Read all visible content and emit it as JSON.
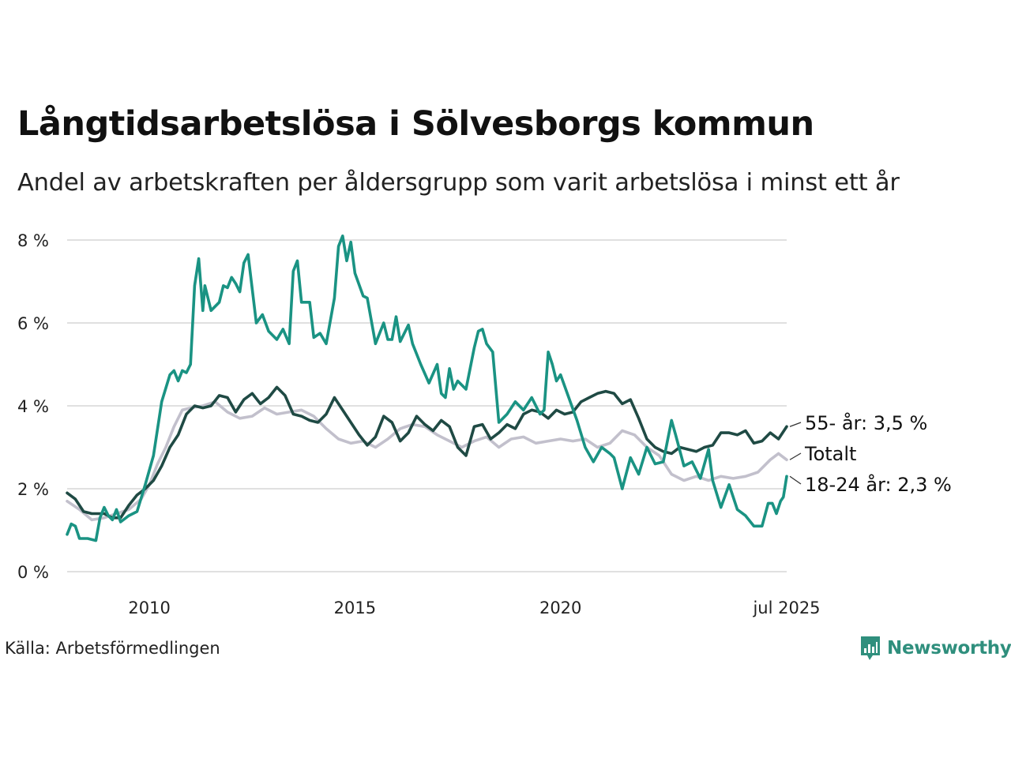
{
  "title": "Långtidsarbetslösa i Sölvesborgs kommun",
  "subtitle": "Andel av arbetskraften per åldersgrupp som varit arbetslösa i minst ett år",
  "source": "Källa: Arbetsförmedlingen",
  "brand": "Newsworthy",
  "colors": {
    "series_55": "#1f4a44",
    "series_total": "#c2c0cc",
    "series_18_24": "#1a9383",
    "grid": "#e0e0e0",
    "brand": "#2f8f7d"
  },
  "chart_data": {
    "type": "line",
    "x_unit": "year",
    "ylim": [
      0,
      8
    ],
    "xlim": [
      2008.0,
      2025.5
    ],
    "y_ticks": [
      0,
      2,
      4,
      6,
      8
    ],
    "y_tick_labels": [
      "0 %",
      "2 %",
      "4 %",
      "6 %",
      "8 %"
    ],
    "x_ticks": [
      2010,
      2015,
      2020,
      2025.5
    ],
    "x_tick_labels": [
      "2010",
      "2015",
      "2020",
      "jul 2025"
    ],
    "grid": "horizontal",
    "series": [
      {
        "key": "total",
        "name": "Totalt",
        "end_label": "Totalt",
        "color": "#c2c0cc",
        "points": [
          [
            2008.0,
            1.7
          ],
          [
            2008.3,
            1.5
          ],
          [
            2008.6,
            1.25
          ],
          [
            2008.9,
            1.3
          ],
          [
            2009.2,
            1.4
          ],
          [
            2009.5,
            1.5
          ],
          [
            2009.8,
            1.75
          ],
          [
            2010.0,
            2.1
          ],
          [
            2010.2,
            2.6
          ],
          [
            2010.4,
            3.0
          ],
          [
            2010.6,
            3.5
          ],
          [
            2010.8,
            3.9
          ],
          [
            2011.0,
            3.95
          ],
          [
            2011.3,
            4.0
          ],
          [
            2011.6,
            4.1
          ],
          [
            2011.9,
            3.85
          ],
          [
            2012.2,
            3.7
          ],
          [
            2012.5,
            3.75
          ],
          [
            2012.8,
            3.95
          ],
          [
            2013.1,
            3.8
          ],
          [
            2013.4,
            3.85
          ],
          [
            2013.7,
            3.9
          ],
          [
            2014.0,
            3.75
          ],
          [
            2014.3,
            3.45
          ],
          [
            2014.6,
            3.2
          ],
          [
            2014.9,
            3.1
          ],
          [
            2015.2,
            3.15
          ],
          [
            2015.5,
            3.0
          ],
          [
            2015.8,
            3.2
          ],
          [
            2016.1,
            3.45
          ],
          [
            2016.4,
            3.55
          ],
          [
            2016.7,
            3.5
          ],
          [
            2017.0,
            3.3
          ],
          [
            2017.3,
            3.15
          ],
          [
            2017.6,
            3.0
          ],
          [
            2017.9,
            3.15
          ],
          [
            2018.2,
            3.25
          ],
          [
            2018.5,
            3.0
          ],
          [
            2018.8,
            3.2
          ],
          [
            2019.1,
            3.25
          ],
          [
            2019.4,
            3.1
          ],
          [
            2019.7,
            3.15
          ],
          [
            2020.0,
            3.2
          ],
          [
            2020.3,
            3.15
          ],
          [
            2020.6,
            3.2
          ],
          [
            2020.9,
            3.0
          ],
          [
            2021.2,
            3.1
          ],
          [
            2021.5,
            3.4
          ],
          [
            2021.8,
            3.3
          ],
          [
            2022.1,
            3.0
          ],
          [
            2022.4,
            2.8
          ],
          [
            2022.7,
            2.35
          ],
          [
            2023.0,
            2.2
          ],
          [
            2023.3,
            2.3
          ],
          [
            2023.6,
            2.2
          ],
          [
            2023.9,
            2.3
          ],
          [
            2024.2,
            2.25
          ],
          [
            2024.5,
            2.3
          ],
          [
            2024.8,
            2.4
          ],
          [
            2025.1,
            2.7
          ],
          [
            2025.3,
            2.85
          ],
          [
            2025.5,
            2.7
          ]
        ]
      },
      {
        "key": "s55",
        "name": "55- år",
        "end_label": "55- år: 3,5 %",
        "color": "#1f4a44",
        "points": [
          [
            2008.0,
            1.9
          ],
          [
            2008.2,
            1.75
          ],
          [
            2008.4,
            1.45
          ],
          [
            2008.6,
            1.4
          ],
          [
            2008.9,
            1.4
          ],
          [
            2009.1,
            1.3
          ],
          [
            2009.3,
            1.3
          ],
          [
            2009.5,
            1.6
          ],
          [
            2009.7,
            1.85
          ],
          [
            2009.9,
            2.0
          ],
          [
            2010.1,
            2.2
          ],
          [
            2010.3,
            2.55
          ],
          [
            2010.5,
            3.0
          ],
          [
            2010.7,
            3.3
          ],
          [
            2010.9,
            3.8
          ],
          [
            2011.1,
            4.0
          ],
          [
            2011.3,
            3.95
          ],
          [
            2011.5,
            4.0
          ],
          [
            2011.7,
            4.25
          ],
          [
            2011.9,
            4.2
          ],
          [
            2012.1,
            3.85
          ],
          [
            2012.3,
            4.15
          ],
          [
            2012.5,
            4.3
          ],
          [
            2012.7,
            4.05
          ],
          [
            2012.9,
            4.2
          ],
          [
            2013.1,
            4.45
          ],
          [
            2013.3,
            4.25
          ],
          [
            2013.5,
            3.8
          ],
          [
            2013.7,
            3.75
          ],
          [
            2013.9,
            3.65
          ],
          [
            2014.1,
            3.6
          ],
          [
            2014.3,
            3.8
          ],
          [
            2014.5,
            4.2
          ],
          [
            2014.7,
            3.9
          ],
          [
            2014.9,
            3.6
          ],
          [
            2015.1,
            3.3
          ],
          [
            2015.3,
            3.05
          ],
          [
            2015.5,
            3.25
          ],
          [
            2015.7,
            3.75
          ],
          [
            2015.9,
            3.6
          ],
          [
            2016.1,
            3.15
          ],
          [
            2016.3,
            3.35
          ],
          [
            2016.5,
            3.75
          ],
          [
            2016.7,
            3.55
          ],
          [
            2016.9,
            3.4
          ],
          [
            2017.1,
            3.65
          ],
          [
            2017.3,
            3.5
          ],
          [
            2017.5,
            3.0
          ],
          [
            2017.7,
            2.8
          ],
          [
            2017.9,
            3.5
          ],
          [
            2018.1,
            3.55
          ],
          [
            2018.3,
            3.2
          ],
          [
            2018.5,
            3.35
          ],
          [
            2018.7,
            3.55
          ],
          [
            2018.9,
            3.45
          ],
          [
            2019.1,
            3.8
          ],
          [
            2019.3,
            3.9
          ],
          [
            2019.5,
            3.85
          ],
          [
            2019.7,
            3.7
          ],
          [
            2019.9,
            3.9
          ],
          [
            2020.1,
            3.8
          ],
          [
            2020.3,
            3.85
          ],
          [
            2020.5,
            4.1
          ],
          [
            2020.7,
            4.2
          ],
          [
            2020.9,
            4.3
          ],
          [
            2021.1,
            4.35
          ],
          [
            2021.3,
            4.3
          ],
          [
            2021.5,
            4.05
          ],
          [
            2021.7,
            4.15
          ],
          [
            2021.9,
            3.7
          ],
          [
            2022.1,
            3.2
          ],
          [
            2022.3,
            3.0
          ],
          [
            2022.5,
            2.9
          ],
          [
            2022.7,
            2.85
          ],
          [
            2022.9,
            3.0
          ],
          [
            2023.1,
            2.95
          ],
          [
            2023.3,
            2.9
          ],
          [
            2023.5,
            3.0
          ],
          [
            2023.7,
            3.05
          ],
          [
            2023.9,
            3.35
          ],
          [
            2024.1,
            3.35
          ],
          [
            2024.3,
            3.3
          ],
          [
            2024.5,
            3.4
          ],
          [
            2024.7,
            3.1
          ],
          [
            2024.9,
            3.15
          ],
          [
            2025.1,
            3.35
          ],
          [
            2025.3,
            3.2
          ],
          [
            2025.5,
            3.5
          ]
        ]
      },
      {
        "key": "s1824",
        "name": "18-24 år",
        "end_label": "18-24 år: 2,3 %",
        "color": "#1a9383",
        "points": [
          [
            2008.0,
            0.9
          ],
          [
            2008.1,
            1.15
          ],
          [
            2008.2,
            1.1
          ],
          [
            2008.3,
            0.8
          ],
          [
            2008.5,
            0.8
          ],
          [
            2008.7,
            0.75
          ],
          [
            2008.8,
            1.3
          ],
          [
            2008.9,
            1.55
          ],
          [
            2009.0,
            1.35
          ],
          [
            2009.1,
            1.25
          ],
          [
            2009.2,
            1.5
          ],
          [
            2009.3,
            1.2
          ],
          [
            2009.5,
            1.35
          ],
          [
            2009.7,
            1.45
          ],
          [
            2009.9,
            2.1
          ],
          [
            2010.1,
            2.8
          ],
          [
            2010.3,
            4.1
          ],
          [
            2010.5,
            4.75
          ],
          [
            2010.6,
            4.85
          ],
          [
            2010.7,
            4.6
          ],
          [
            2010.8,
            4.85
          ],
          [
            2010.9,
            4.8
          ],
          [
            2011.0,
            5.0
          ],
          [
            2011.1,
            6.9
          ],
          [
            2011.2,
            7.55
          ],
          [
            2011.3,
            6.3
          ],
          [
            2011.35,
            6.9
          ],
          [
            2011.5,
            6.3
          ],
          [
            2011.7,
            6.5
          ],
          [
            2011.8,
            6.9
          ],
          [
            2011.9,
            6.85
          ],
          [
            2012.0,
            7.1
          ],
          [
            2012.1,
            6.95
          ],
          [
            2012.2,
            6.75
          ],
          [
            2012.3,
            7.45
          ],
          [
            2012.4,
            7.65
          ],
          [
            2012.6,
            6.0
          ],
          [
            2012.75,
            6.2
          ],
          [
            2012.9,
            5.8
          ],
          [
            2013.1,
            5.6
          ],
          [
            2013.25,
            5.85
          ],
          [
            2013.4,
            5.5
          ],
          [
            2013.5,
            7.25
          ],
          [
            2013.6,
            7.5
          ],
          [
            2013.7,
            6.5
          ],
          [
            2013.9,
            6.5
          ],
          [
            2014.0,
            5.65
          ],
          [
            2014.15,
            5.75
          ],
          [
            2014.3,
            5.5
          ],
          [
            2014.5,
            6.6
          ],
          [
            2014.6,
            7.85
          ],
          [
            2014.7,
            8.1
          ],
          [
            2014.8,
            7.5
          ],
          [
            2014.9,
            7.95
          ],
          [
            2015.0,
            7.2
          ],
          [
            2015.2,
            6.65
          ],
          [
            2015.3,
            6.6
          ],
          [
            2015.5,
            5.5
          ],
          [
            2015.7,
            6.0
          ],
          [
            2015.8,
            5.6
          ],
          [
            2015.9,
            5.6
          ],
          [
            2016.0,
            6.15
          ],
          [
            2016.1,
            5.55
          ],
          [
            2016.3,
            5.95
          ],
          [
            2016.4,
            5.5
          ],
          [
            2016.6,
            5.0
          ],
          [
            2016.8,
            4.55
          ],
          [
            2017.0,
            5.0
          ],
          [
            2017.1,
            4.3
          ],
          [
            2017.2,
            4.2
          ],
          [
            2017.3,
            4.9
          ],
          [
            2017.4,
            4.4
          ],
          [
            2017.5,
            4.6
          ],
          [
            2017.7,
            4.4
          ],
          [
            2017.9,
            5.4
          ],
          [
            2018.0,
            5.8
          ],
          [
            2018.1,
            5.85
          ],
          [
            2018.2,
            5.5
          ],
          [
            2018.35,
            5.3
          ],
          [
            2018.5,
            3.6
          ],
          [
            2018.7,
            3.8
          ],
          [
            2018.9,
            4.1
          ],
          [
            2019.1,
            3.9
          ],
          [
            2019.3,
            4.2
          ],
          [
            2019.5,
            3.8
          ],
          [
            2019.6,
            3.9
          ],
          [
            2019.7,
            5.3
          ],
          [
            2019.8,
            5.0
          ],
          [
            2019.9,
            4.6
          ],
          [
            2020.0,
            4.75
          ],
          [
            2020.2,
            4.2
          ],
          [
            2020.4,
            3.65
          ],
          [
            2020.6,
            3.0
          ],
          [
            2020.8,
            2.65
          ],
          [
            2021.0,
            3.0
          ],
          [
            2021.2,
            2.85
          ],
          [
            2021.3,
            2.75
          ],
          [
            2021.5,
            2.0
          ],
          [
            2021.7,
            2.75
          ],
          [
            2021.9,
            2.35
          ],
          [
            2022.1,
            3.0
          ],
          [
            2022.3,
            2.6
          ],
          [
            2022.5,
            2.65
          ],
          [
            2022.7,
            3.65
          ],
          [
            2022.8,
            3.3
          ],
          [
            2023.0,
            2.55
          ],
          [
            2023.2,
            2.65
          ],
          [
            2023.4,
            2.25
          ],
          [
            2023.6,
            2.95
          ],
          [
            2023.7,
            2.2
          ],
          [
            2023.9,
            1.55
          ],
          [
            2024.1,
            2.1
          ],
          [
            2024.3,
            1.5
          ],
          [
            2024.5,
            1.35
          ],
          [
            2024.7,
            1.1
          ],
          [
            2024.9,
            1.1
          ],
          [
            2025.05,
            1.65
          ],
          [
            2025.15,
            1.65
          ],
          [
            2025.25,
            1.4
          ],
          [
            2025.35,
            1.7
          ],
          [
            2025.42,
            1.8
          ],
          [
            2025.5,
            2.3
          ]
        ]
      }
    ]
  }
}
